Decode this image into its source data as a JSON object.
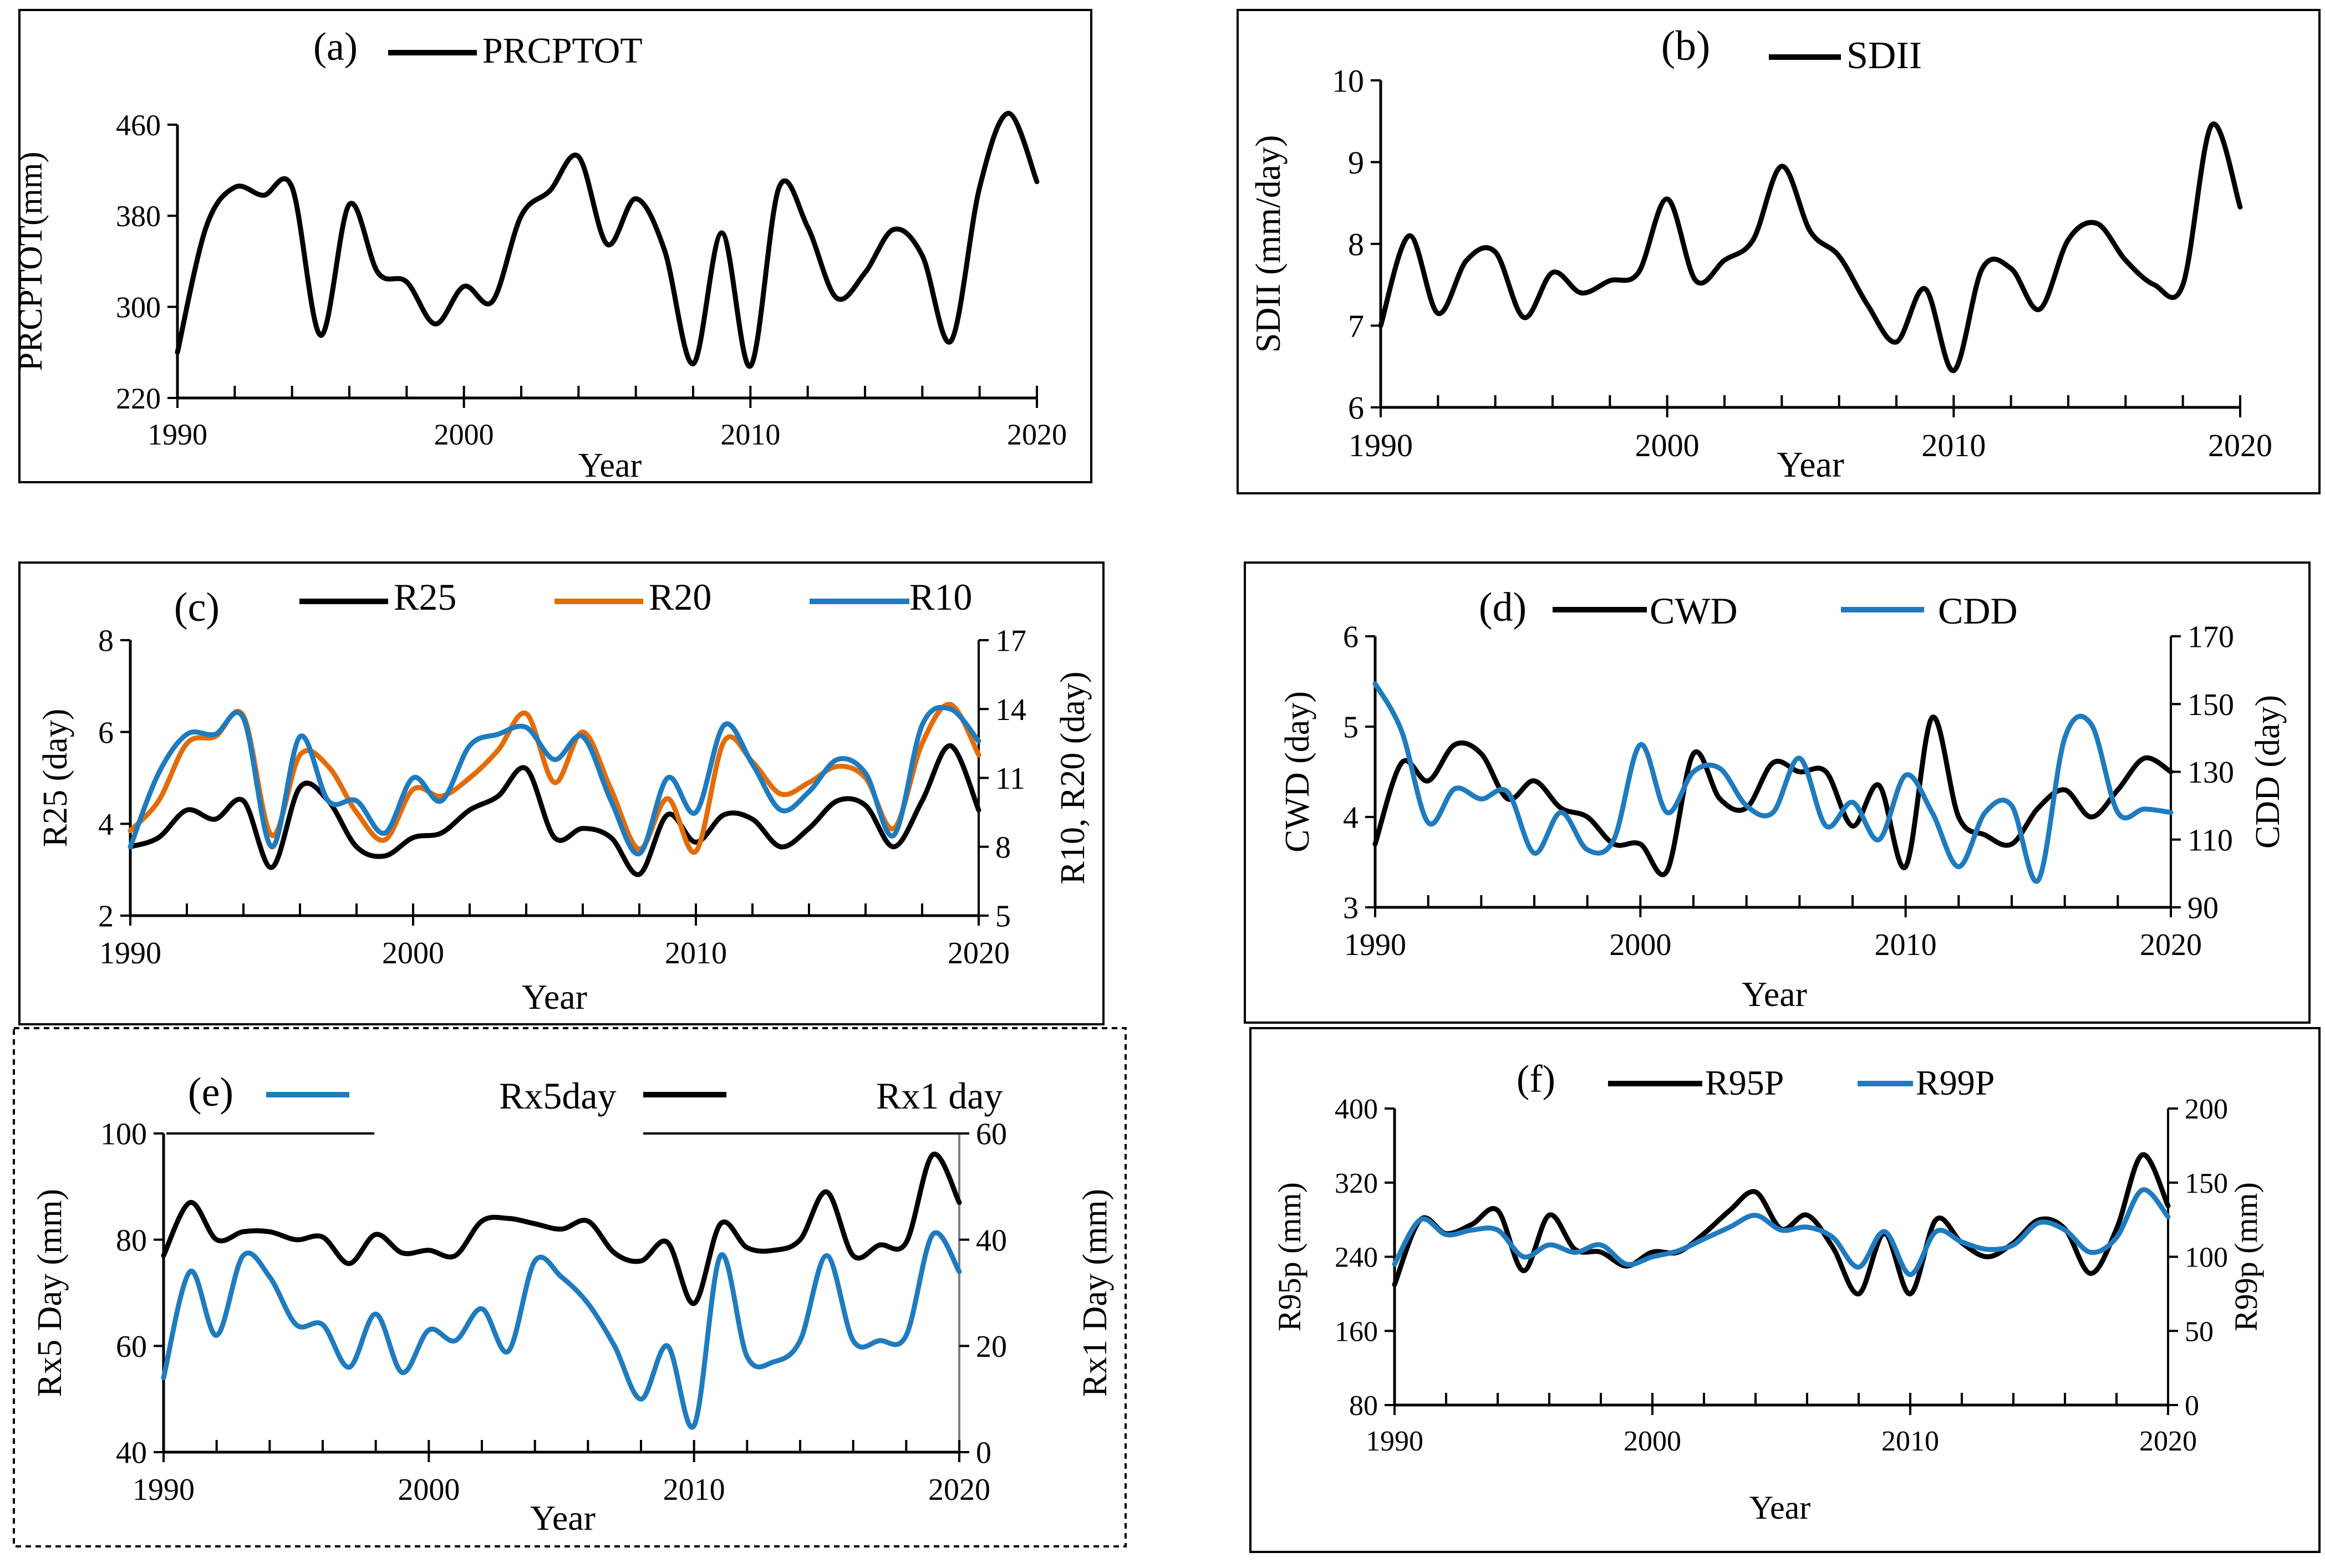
{
  "figure": {
    "background": "#ffffff",
    "axis_color": "#000000",
    "secondary_axis_color": "#7f7f7f"
  },
  "chart_data": [
    {
      "id": "a",
      "type": "line",
      "label": "(a)",
      "xlabel": "Year",
      "ylabel": "PRCPTOT(mm)",
      "xlim": [
        1990,
        2020
      ],
      "xticks": [
        1990,
        2000,
        2010,
        2020
      ],
      "ylim": [
        220,
        460
      ],
      "yticks": [
        220,
        300,
        380,
        460
      ],
      "series": [
        {
          "name": "PRCPTOT",
          "color": "#000000",
          "axis": "left",
          "x": [
            1990,
            1991,
            1992,
            1993,
            1994,
            1995,
            1996,
            1997,
            1998,
            1999,
            2000,
            2001,
            2002,
            2003,
            2004,
            2005,
            2006,
            2007,
            2008,
            2009,
            2010,
            2011,
            2012,
            2013,
            2014,
            2015,
            2016,
            2017,
            2018,
            2019,
            2020
          ],
          "values": [
            260,
            370,
            405,
            398,
            405,
            275,
            390,
            330,
            322,
            285,
            318,
            305,
            380,
            402,
            432,
            355,
            395,
            350,
            250,
            365,
            248,
            405,
            370,
            308,
            330,
            368,
            345,
            270,
            405,
            470,
            410
          ]
        }
      ]
    },
    {
      "id": "b",
      "type": "line",
      "label": "(b)",
      "xlabel": "Year",
      "ylabel": "SDII (mm/day)",
      "xlim": [
        1990,
        2020
      ],
      "xticks": [
        1990,
        2000,
        2010,
        2020
      ],
      "ylim": [
        6,
        10
      ],
      "yticks": [
        6,
        7,
        8,
        9,
        10
      ],
      "series": [
        {
          "name": "SDII",
          "color": "#000000",
          "axis": "left",
          "x": [
            1990,
            1991,
            1992,
            1993,
            1994,
            1995,
            1996,
            1997,
            1998,
            1999,
            2000,
            2001,
            2002,
            2003,
            2004,
            2005,
            2006,
            2007,
            2008,
            2009,
            2010,
            2011,
            2012,
            2013,
            2014,
            2015,
            2016,
            2017,
            2018,
            2019,
            2020
          ],
          "values": [
            7.0,
            8.1,
            7.15,
            7.8,
            7.9,
            7.1,
            7.65,
            7.4,
            7.55,
            7.65,
            8.55,
            7.55,
            7.8,
            8.05,
            8.95,
            8.15,
            7.85,
            7.25,
            6.8,
            7.45,
            6.45,
            7.7,
            7.7,
            7.2,
            8.05,
            8.25,
            7.8,
            7.5,
            7.5,
            9.45,
            8.45
          ]
        }
      ]
    },
    {
      "id": "c",
      "type": "line",
      "label": "(c)",
      "xlabel": "Year",
      "ylabel": "R25 (day)",
      "y2label": "R10, R20 (day)",
      "xlim": [
        1990,
        2020
      ],
      "xticks": [
        1990,
        2000,
        2010,
        2020
      ],
      "ylim": [
        2,
        8
      ],
      "yticks": [
        2,
        4,
        6,
        8
      ],
      "y2lim": [
        5,
        17
      ],
      "y2ticks": [
        5,
        8,
        11,
        14,
        17
      ],
      "series": [
        {
          "name": "R25",
          "color": "#000000",
          "axis": "left",
          "x": [
            1990,
            1991,
            1992,
            1993,
            1994,
            1995,
            1996,
            1997,
            1998,
            1999,
            2000,
            2001,
            2002,
            2003,
            2004,
            2005,
            2006,
            2007,
            2008,
            2009,
            2010,
            2011,
            2012,
            2013,
            2014,
            2015,
            2016,
            2017,
            2018,
            2019,
            2020
          ],
          "values": [
            3.5,
            3.7,
            4.3,
            4.1,
            4.5,
            3.05,
            4.8,
            4.5,
            3.5,
            3.3,
            3.7,
            3.8,
            4.3,
            4.6,
            5.2,
            3.7,
            3.9,
            3.7,
            2.9,
            4.2,
            3.6,
            4.2,
            4.1,
            3.5,
            3.9,
            4.5,
            4.4,
            3.5,
            4.5,
            5.7,
            4.3
          ]
        },
        {
          "name": "R20",
          "color": "#e36c09",
          "axis": "right",
          "x": [
            1990,
            1991,
            1992,
            1993,
            1994,
            1995,
            1996,
            1997,
            1998,
            1999,
            2000,
            2001,
            2002,
            2003,
            2004,
            2005,
            2006,
            2007,
            2008,
            2009,
            2010,
            2011,
            2012,
            2013,
            2014,
            2015,
            2016,
            2017,
            2018,
            2019,
            2020
          ],
          "values": [
            8.7,
            10.0,
            12.5,
            12.8,
            13.7,
            8.5,
            12.0,
            11.5,
            9.5,
            8.3,
            10.5,
            10.2,
            11.0,
            12.2,
            13.8,
            10.8,
            13.0,
            10.5,
            7.9,
            10.1,
            7.8,
            12.6,
            11.7,
            10.3,
            10.8,
            11.5,
            11.0,
            8.8,
            12.5,
            14.2,
            12.0
          ]
        },
        {
          "name": "R10",
          "color": "#1f7bbf",
          "axis": "right",
          "x": [
            1990,
            1991,
            1992,
            1993,
            1994,
            1995,
            1996,
            1997,
            1998,
            1999,
            2000,
            2001,
            2002,
            2003,
            2004,
            2005,
            2006,
            2007,
            2008,
            2009,
            2010,
            2011,
            2012,
            2013,
            2014,
            2015,
            2016,
            2017,
            2018,
            2019,
            2020
          ],
          "values": [
            8.0,
            11.2,
            12.9,
            12.9,
            13.6,
            8.0,
            12.8,
            10.0,
            10.0,
            8.6,
            11.0,
            10.0,
            12.4,
            12.9,
            13.2,
            11.8,
            12.8,
            10.0,
            7.7,
            11.0,
            9.5,
            13.3,
            11.6,
            9.6,
            10.4,
            11.8,
            11.2,
            8.5,
            13.3,
            14.0,
            12.6
          ]
        }
      ]
    },
    {
      "id": "d",
      "type": "line",
      "label": "(d)",
      "xlabel": "Year",
      "ylabel": "CWD (day)",
      "y2label": "CDD (day)",
      "xlim": [
        1990,
        2020
      ],
      "xticks": [
        1990,
        2000,
        2010,
        2020
      ],
      "ylim": [
        3,
        6
      ],
      "yticks": [
        3,
        4,
        5,
        6
      ],
      "y2lim": [
        90,
        170
      ],
      "y2ticks": [
        90,
        110,
        130,
        150,
        170
      ],
      "series": [
        {
          "name": "CWD",
          "color": "#000000",
          "axis": "left",
          "x": [
            1990,
            1991,
            1992,
            1993,
            1994,
            1995,
            1996,
            1997,
            1998,
            1999,
            2000,
            2001,
            2002,
            2003,
            2004,
            2005,
            2006,
            2007,
            2008,
            2009,
            2010,
            2011,
            2012,
            2013,
            2014,
            2015,
            2016,
            2017,
            2018,
            2019,
            2020
          ],
          "values": [
            3.7,
            4.6,
            4.4,
            4.8,
            4.7,
            4.2,
            4.4,
            4.1,
            4.0,
            3.7,
            3.7,
            3.4,
            4.7,
            4.2,
            4.1,
            4.6,
            4.5,
            4.5,
            3.9,
            4.35,
            3.45,
            5.1,
            4.0,
            3.8,
            3.7,
            4.1,
            4.3,
            4.0,
            4.3,
            4.65,
            4.5
          ]
        },
        {
          "name": "CDD",
          "color": "#1f7bbf",
          "axis": "right",
          "x": [
            1990,
            1991,
            1992,
            1993,
            1994,
            1995,
            1996,
            1997,
            1998,
            1999,
            2000,
            2001,
            2002,
            2003,
            2004,
            2005,
            2006,
            2007,
            2008,
            2009,
            2010,
            2011,
            2012,
            2013,
            2014,
            2015,
            2016,
            2017,
            2018,
            2019,
            2020
          ],
          "values": [
            156,
            142,
            115,
            125,
            122,
            124,
            106,
            118,
            107,
            110,
            138,
            118,
            130,
            131,
            120,
            118,
            134,
            114,
            121,
            110,
            129,
            118,
            102,
            118,
            120,
            98,
            140,
            144,
            118,
            119,
            118
          ]
        }
      ]
    },
    {
      "id": "e",
      "type": "line",
      "label": "(e)",
      "xlabel": "Year",
      "ylabel": "Rx5 Day (mm)",
      "y2label": "Rx1 Day (mm)",
      "xlim": [
        1990,
        2020
      ],
      "xticks": [
        1990,
        2000,
        2010,
        2020
      ],
      "ylim": [
        40,
        100
      ],
      "yticks": [
        40,
        60,
        80,
        100
      ],
      "y2lim": [
        0,
        60
      ],
      "y2ticks": [
        0,
        20,
        40,
        60
      ],
      "series": [
        {
          "name": "Rx5day",
          "color": "#1f7bbf",
          "axis": "left",
          "x": [
            1990,
            1991,
            1992,
            1993,
            1994,
            1995,
            1996,
            1997,
            1998,
            1999,
            2000,
            2001,
            2002,
            2003,
            2004,
            2005,
            2006,
            2007,
            2008,
            2009,
            2010,
            2011,
            2012,
            2013,
            2014,
            2015,
            2016,
            2017,
            2018,
            2019,
            2020
          ],
          "values": [
            54,
            74,
            62,
            77,
            73,
            64,
            64,
            56,
            66,
            55,
            63,
            61,
            67,
            59,
            76,
            73,
            68,
            60,
            50,
            60,
            45,
            77,
            58,
            57,
            61,
            77,
            61,
            61,
            62,
            81,
            74
          ]
        },
        {
          "name": "Rx1 day",
          "color": "#000000",
          "axis": "right",
          "x": [
            1990,
            1991,
            1992,
            1993,
            1994,
            1995,
            1996,
            1997,
            1998,
            1999,
            2000,
            2001,
            2002,
            2003,
            2004,
            2005,
            2006,
            2007,
            2008,
            2009,
            2010,
            2011,
            2012,
            2013,
            2014,
            2015,
            2016,
            2017,
            2018,
            2019,
            2020
          ],
          "values": [
            37,
            47,
            40,
            41.5,
            41.5,
            40,
            40.5,
            35.5,
            41,
            37.5,
            38,
            37,
            43.5,
            44,
            43,
            42,
            43.5,
            37.5,
            36,
            39.5,
            28,
            43,
            38.5,
            38,
            40,
            49,
            37,
            39,
            39.5,
            56,
            47
          ]
        }
      ]
    },
    {
      "id": "f",
      "type": "line",
      "label": "(f)",
      "xlabel": "Year",
      "ylabel": "R95p (mm)",
      "y2label": "R99p (mm)",
      "xlim": [
        1990,
        2020
      ],
      "xticks": [
        1990,
        2000,
        2010,
        2020
      ],
      "ylim": [
        80,
        400
      ],
      "yticks": [
        80,
        160,
        240,
        320,
        400
      ],
      "y2lim": [
        0,
        200
      ],
      "y2ticks": [
        0,
        50,
        100,
        150,
        200
      ],
      "series": [
        {
          "name": "R95P",
          "color": "#000000",
          "axis": "left",
          "x": [
            1990,
            1991,
            1992,
            1993,
            1994,
            1995,
            1996,
            1997,
            1998,
            1999,
            2000,
            2001,
            2002,
            2003,
            2004,
            2005,
            2006,
            2007,
            2008,
            2009,
            2010,
            2011,
            2012,
            2013,
            2014,
            2015,
            2016,
            2017,
            2018,
            2019,
            2020
          ],
          "values": [
            210,
            280,
            265,
            275,
            290,
            225,
            285,
            248,
            245,
            230,
            245,
            245,
            265,
            290,
            310,
            270,
            285,
            250,
            200,
            265,
            200,
            280,
            255,
            240,
            255,
            280,
            270,
            222,
            270,
            350,
            295
          ]
        },
        {
          "name": "R99P",
          "color": "#1f7bbf",
          "axis": "right",
          "x": [
            1990,
            1991,
            1992,
            1993,
            1994,
            1995,
            1996,
            1997,
            1998,
            1999,
            2000,
            2001,
            2002,
            2003,
            2004,
            2005,
            2006,
            2007,
            2008,
            2009,
            2010,
            2011,
            2012,
            2013,
            2014,
            2015,
            2016,
            2017,
            2018,
            2019,
            2020
          ],
          "values": [
            95,
            125,
            115,
            118,
            118,
            100,
            108,
            103,
            108,
            95,
            100,
            104,
            112,
            120,
            128,
            118,
            120,
            113,
            93,
            117,
            88,
            117,
            110,
            105,
            108,
            123,
            118,
            103,
            113,
            145,
            127
          ]
        }
      ]
    }
  ]
}
